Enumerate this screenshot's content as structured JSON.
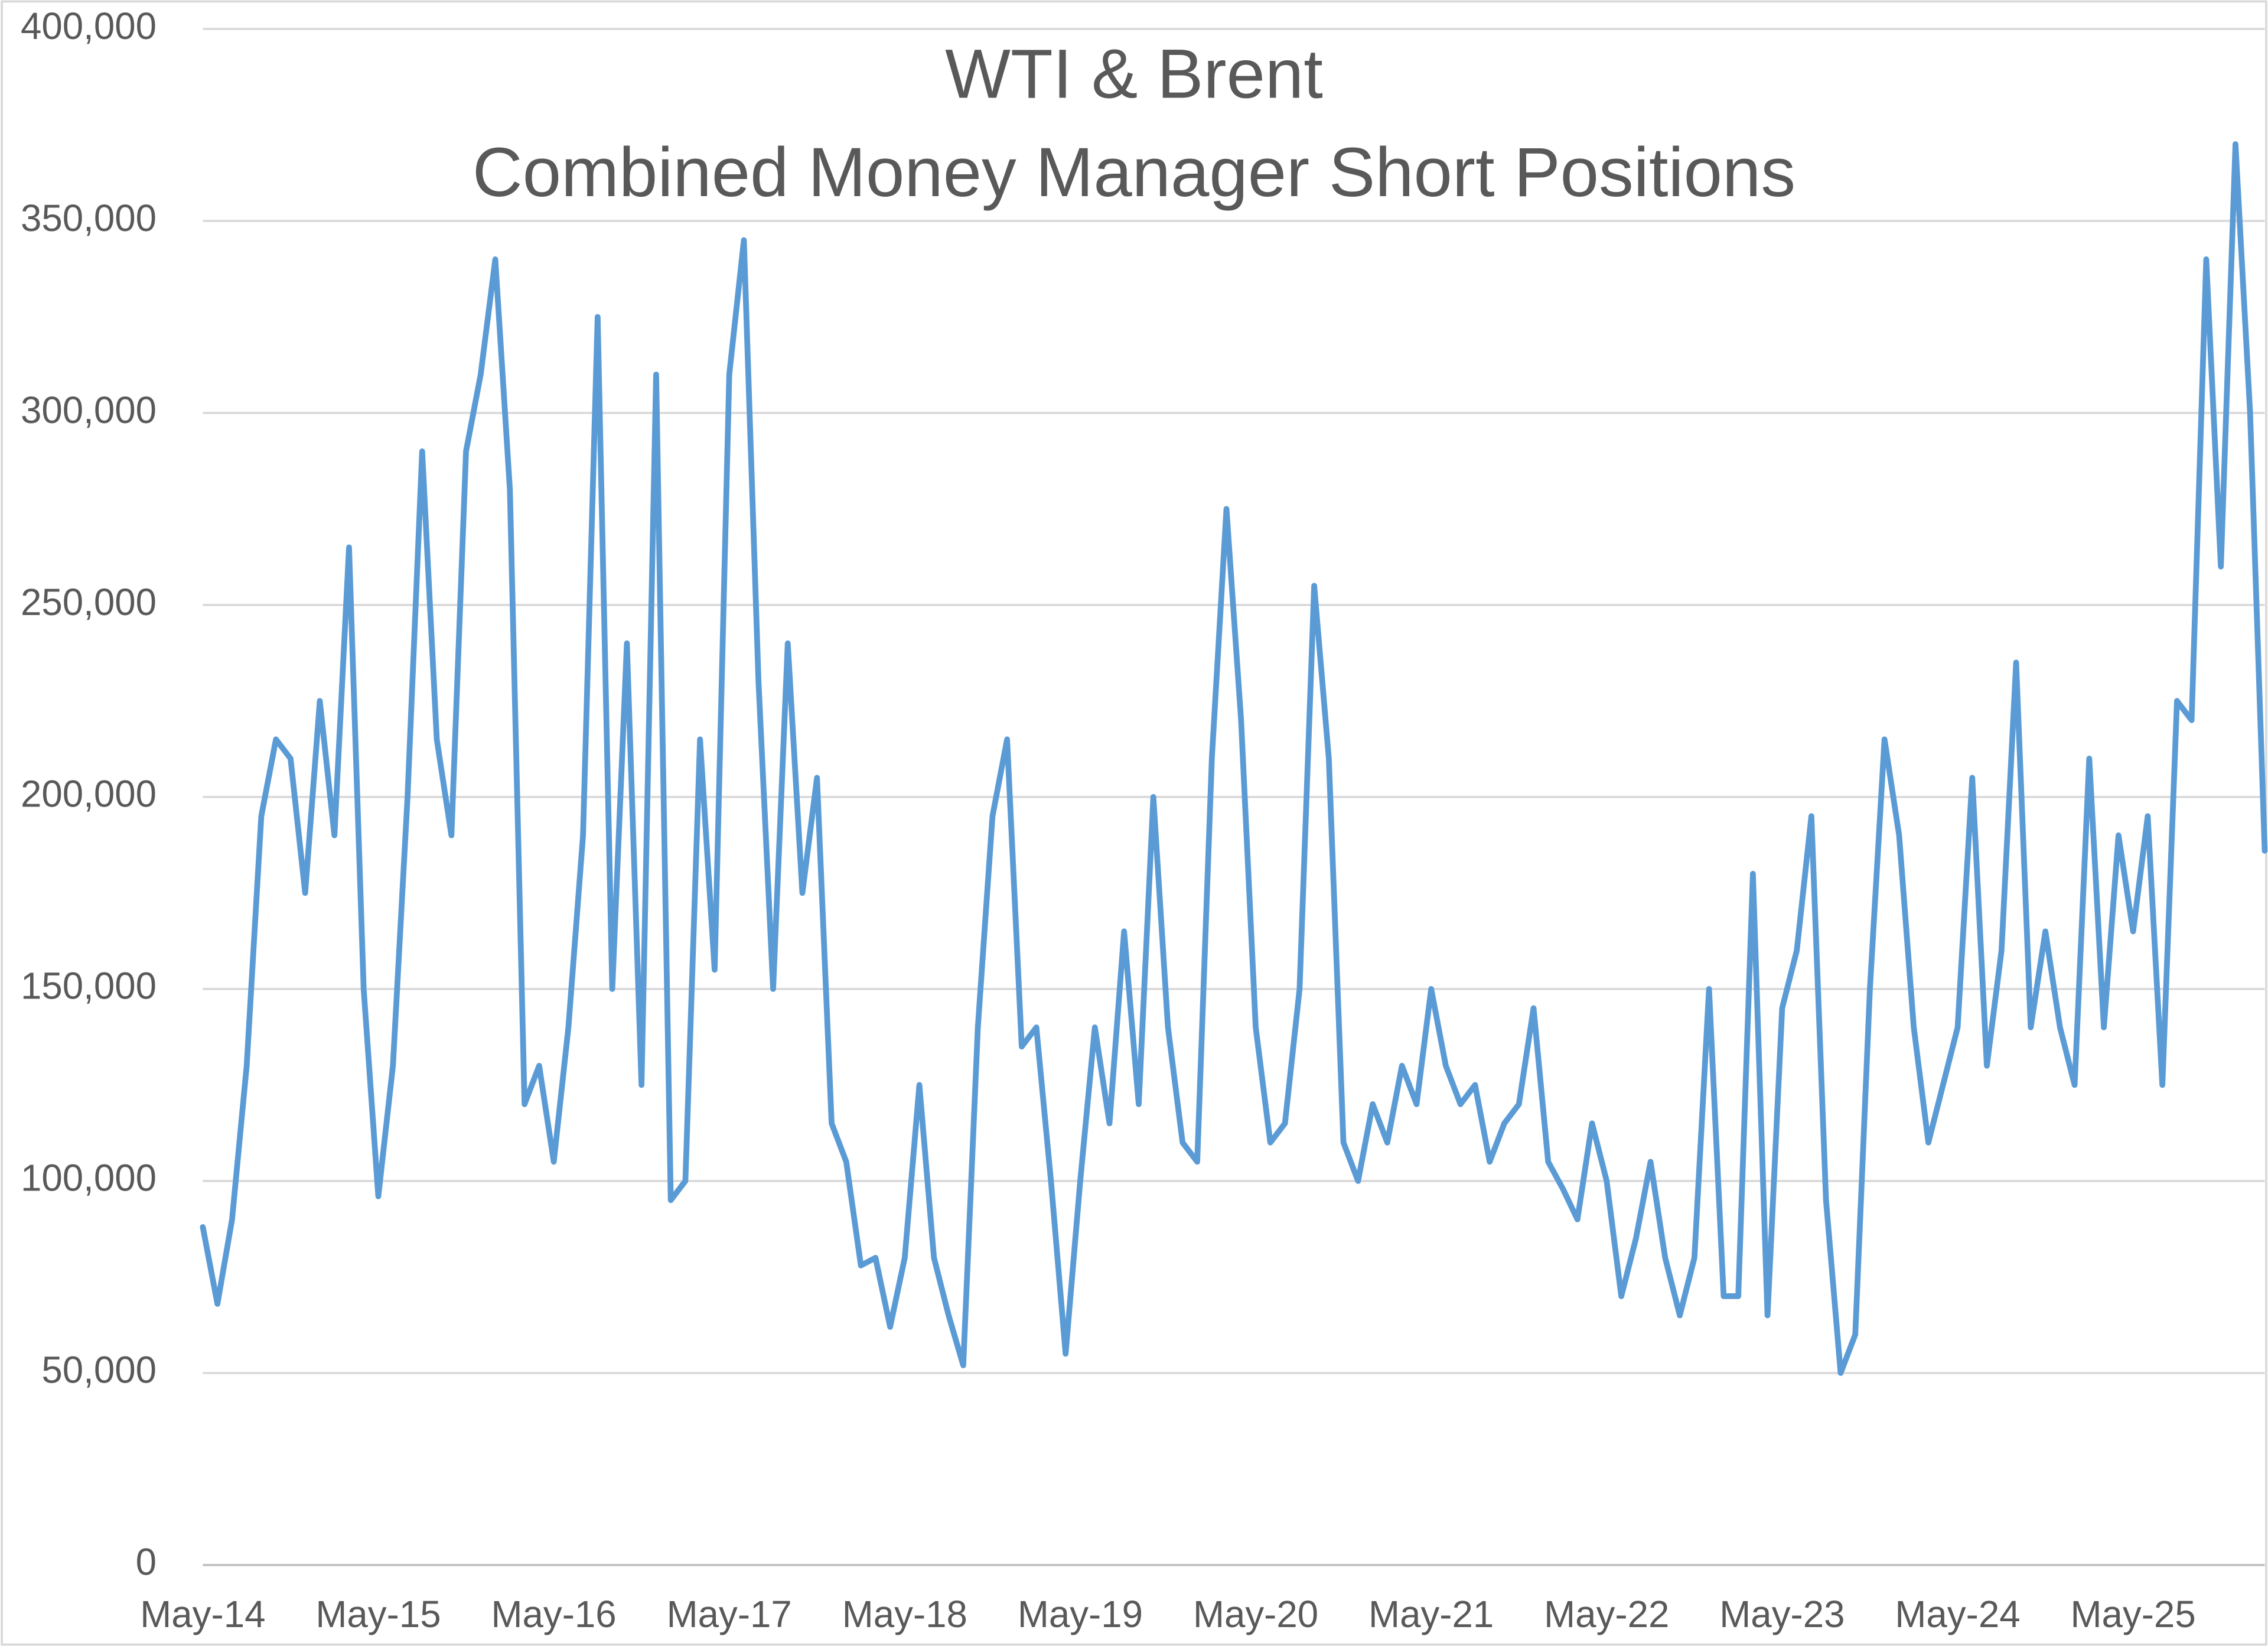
{
  "chart_data": {
    "type": "line",
    "title": "WTI & Brent",
    "subtitle": "Combined Money Manager Short Positions",
    "x": [
      "May-14",
      "Jun-14",
      "Jul-14",
      "Aug-14",
      "Sep-14",
      "Oct-14",
      "Nov-14",
      "Dec-14",
      "Jan-15",
      "Feb-15",
      "Mar-15",
      "Apr-15",
      "May-15",
      "Jun-15",
      "Jul-15",
      "Aug-15",
      "Sep-15",
      "Oct-15",
      "Nov-15",
      "Dec-15",
      "Jan-16",
      "Feb-16",
      "Mar-16",
      "Apr-16",
      "May-16",
      "Jun-16",
      "Jul-16",
      "Aug-16",
      "Sep-16",
      "Oct-16",
      "Nov-16",
      "Dec-16",
      "Jan-17",
      "Feb-17",
      "Mar-17",
      "Apr-17",
      "May-17",
      "Jun-17",
      "Jul-17",
      "Aug-17",
      "Sep-17",
      "Oct-17",
      "Nov-17",
      "Dec-17",
      "Jan-18",
      "Feb-18",
      "Mar-18",
      "Apr-18",
      "May-18",
      "Jun-18",
      "Jul-18",
      "Aug-18",
      "Sep-18",
      "Oct-18",
      "Nov-18",
      "Dec-18",
      "Jan-19",
      "Feb-19",
      "Mar-19",
      "Apr-19",
      "May-19",
      "Jun-19",
      "Jul-19",
      "Aug-19",
      "Sep-19",
      "Oct-19",
      "Nov-19",
      "Dec-19",
      "Jan-20",
      "Feb-20",
      "Mar-20",
      "Apr-20",
      "May-20",
      "Jun-20",
      "Jul-20",
      "Aug-20",
      "Sep-20",
      "Oct-20",
      "Nov-20",
      "Dec-20",
      "Jan-21",
      "Feb-21",
      "Mar-21",
      "Apr-21",
      "May-21",
      "Jun-21",
      "Jul-21",
      "Aug-21",
      "Sep-21",
      "Oct-21",
      "Nov-21",
      "Dec-21",
      "Jan-22",
      "Feb-22",
      "Mar-22",
      "Apr-22",
      "May-22",
      "Jun-22",
      "Jul-22",
      "Aug-22",
      "Sep-22",
      "Oct-22",
      "Nov-22",
      "Dec-22",
      "Jan-23",
      "Feb-23",
      "Mar-23",
      "Apr-23",
      "May-23",
      "Jun-23",
      "Jul-23",
      "Aug-23",
      "Sep-23",
      "Oct-23",
      "Nov-23",
      "Dec-23",
      "Jan-24",
      "Feb-24",
      "Mar-24",
      "Apr-24",
      "May-24",
      "Jun-24",
      "Jul-24",
      "Aug-24",
      "Sep-24",
      "Oct-24",
      "Nov-24",
      "Dec-24",
      "Jan-25",
      "Feb-25",
      "Mar-25",
      "Apr-25",
      "May-25",
      "Jun-25",
      "Jul-25",
      "Aug-25",
      "Sep-25",
      "Oct-25",
      "Nov-25",
      "Dec-25",
      "Jan-26",
      "Feb-26"
    ],
    "series": [
      {
        "name": "Combined Money Manager Short Positions",
        "color": "#5b9bd5",
        "values": [
          88000,
          68000,
          90000,
          130000,
          195000,
          215000,
          210000,
          175000,
          225000,
          190000,
          265000,
          150000,
          96000,
          130000,
          200000,
          290000,
          215000,
          190000,
          290000,
          310000,
          340000,
          280000,
          120000,
          130000,
          105000,
          140000,
          190000,
          325000,
          150000,
          240000,
          125000,
          310000,
          95000,
          100000,
          215000,
          155000,
          310000,
          345000,
          230000,
          150000,
          240000,
          175000,
          205000,
          115000,
          105000,
          78000,
          80000,
          62000,
          80000,
          125000,
          80000,
          65000,
          52000,
          140000,
          195000,
          215000,
          135000,
          140000,
          100000,
          55000,
          100000,
          140000,
          115000,
          165000,
          120000,
          200000,
          140000,
          110000,
          105000,
          210000,
          275000,
          220000,
          140000,
          110000,
          115000,
          150000,
          255000,
          210000,
          110000,
          100000,
          120000,
          110000,
          130000,
          120000,
          150000,
          130000,
          120000,
          125000,
          105000,
          115000,
          120000,
          145000,
          105000,
          98000,
          90000,
          115000,
          100000,
          70000,
          85000,
          105000,
          80000,
          65000,
          80000,
          150000,
          70000,
          70000,
          180000,
          65000,
          145000,
          160000,
          195000,
          95000,
          50000,
          60000,
          150000,
          215000,
          190000,
          140000,
          110000,
          125000,
          140000,
          205000,
          130000,
          160000,
          235000,
          140000,
          165000,
          140000,
          125000,
          210000,
          140000,
          190000,
          165000,
          195000,
          125000,
          225000,
          220000,
          340000,
          260000,
          370000,
          300000,
          186000
        ]
      }
    ],
    "xticks": [
      "May-14",
      "May-15",
      "May-16",
      "May-17",
      "May-18",
      "May-19",
      "May-20",
      "May-21",
      "May-22",
      "May-23",
      "May-24",
      "May-25"
    ],
    "ylim": [
      0,
      400000
    ],
    "yticks": [
      0,
      {
        "value": 50000,
        "label": "50,000"
      },
      {
        "value": 100000,
        "label": "100,000"
      },
      {
        "value": 150000,
        "label": "150,000"
      },
      {
        "value": 200000,
        "label": "200,000"
      },
      {
        "value": 250000,
        "label": "250,000"
      },
      {
        "value": 300000,
        "label": "300,000"
      },
      {
        "value": 350000,
        "label": "350,000"
      },
      {
        "value": 400000,
        "label": "400,000"
      }
    ],
    "grid": true
  }
}
